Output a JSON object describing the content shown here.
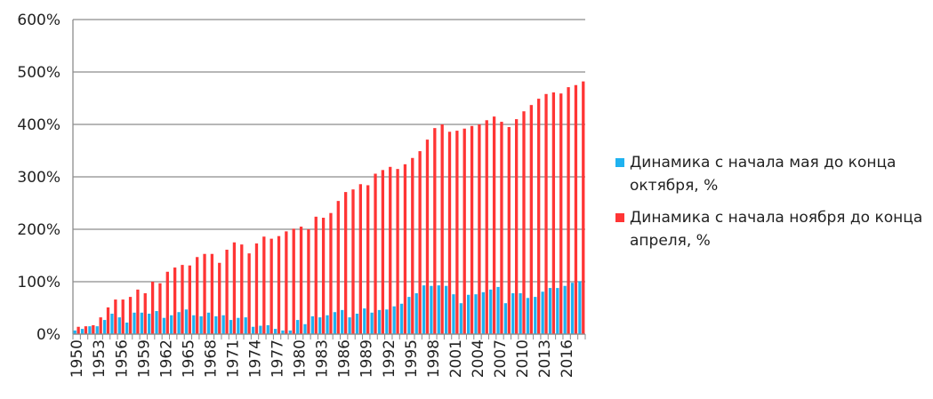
{
  "chart_data": {
    "type": "bar",
    "title": "",
    "xlabel": "",
    "ylabel": "",
    "ylim": [
      0,
      600
    ],
    "yticks": [
      "0%",
      "100%",
      "200%",
      "300%",
      "400%",
      "500%",
      "600%"
    ],
    "grid": true,
    "legend_position": "right",
    "categories": [
      1950,
      1951,
      1952,
      1953,
      1954,
      1955,
      1956,
      1957,
      1958,
      1959,
      1960,
      1961,
      1962,
      1963,
      1964,
      1965,
      1966,
      1967,
      1968,
      1969,
      1970,
      1971,
      1972,
      1973,
      1974,
      1975,
      1976,
      1977,
      1978,
      1979,
      1980,
      1981,
      1982,
      1983,
      1984,
      1985,
      1986,
      1987,
      1988,
      1989,
      1990,
      1991,
      1992,
      1993,
      1994,
      1995,
      1996,
      1997,
      1998,
      1999,
      2000,
      2001,
      2002,
      2003,
      2004,
      2005,
      2006,
      2007,
      2008,
      2009,
      2010,
      2011,
      2012,
      2013,
      2014,
      2015,
      2016,
      2017,
      2018
    ],
    "xtick_labels": [
      "1950",
      "1953",
      "1956",
      "1959",
      "1962",
      "1965",
      "1968",
      "1971",
      "1974",
      "1977",
      "1980",
      "1983",
      "1986",
      "1989",
      "1992",
      "1995",
      "1998",
      "2001",
      "2004",
      "2007",
      "2010",
      "2013",
      "2016"
    ],
    "series": [
      {
        "name": "Динамика с начала мая до конца октября, %",
        "color": "#1FB2F0",
        "values": [
          7,
          10,
          15,
          15,
          27,
          39,
          32,
          22,
          41,
          41,
          39,
          44,
          31,
          36,
          42,
          47,
          36,
          34,
          41,
          34,
          36,
          27,
          31,
          32,
          14,
          16,
          17,
          10,
          7,
          7,
          27,
          19,
          34,
          32,
          36,
          42,
          46,
          32,
          39,
          49,
          41,
          46,
          47,
          53,
          58,
          71,
          78,
          93,
          92,
          93,
          92,
          76,
          59,
          75,
          76,
          80,
          85,
          90,
          59,
          78,
          78,
          69,
          71,
          81,
          88,
          88,
          92,
          98,
          101
        ]
      },
      {
        "name": "Динамика с начала ноября до конца апреля, %",
        "color": "#FF3535",
        "values": [
          14,
          15,
          17,
          32,
          51,
          66,
          66,
          71,
          85,
          78,
          100,
          97,
          119,
          127,
          132,
          131,
          147,
          153,
          153,
          136,
          161,
          175,
          171,
          154,
          173,
          186,
          182,
          187,
          196,
          201,
          205,
          200,
          224,
          222,
          231,
          254,
          271,
          276,
          286,
          284,
          306,
          313,
          319,
          315,
          324,
          336,
          349,
          371,
          393,
          400,
          386,
          388,
          392,
          397,
          400,
          408,
          415,
          405,
          395,
          410,
          425,
          437,
          449,
          458,
          461,
          459,
          471,
          475,
          482
        ]
      }
    ]
  }
}
